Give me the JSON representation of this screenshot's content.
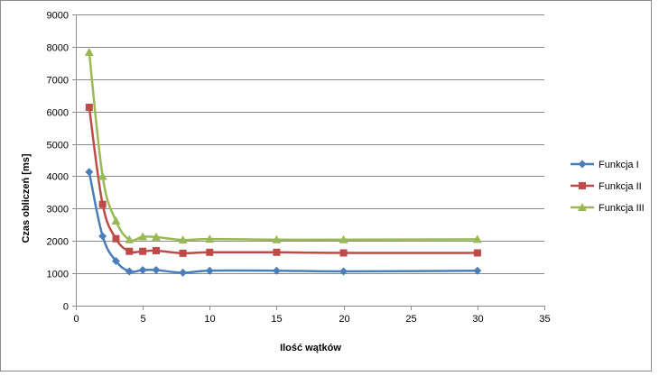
{
  "chart_data": {
    "type": "line",
    "title": "",
    "xlabel": "Ilość wątków",
    "ylabel": "Czas obliczeń  [ms]",
    "xlim": [
      0,
      35
    ],
    "ylim": [
      0,
      9000
    ],
    "x_ticks": [
      0,
      5,
      10,
      15,
      20,
      25,
      30,
      35
    ],
    "y_ticks": [
      0,
      1000,
      2000,
      3000,
      4000,
      5000,
      6000,
      7000,
      8000,
      9000
    ],
    "grid": "horizontal",
    "legend_position": "right",
    "x": [
      1,
      2,
      3,
      4,
      5,
      6,
      8,
      10,
      15,
      20,
      30
    ],
    "series": [
      {
        "name": "Funkcja I",
        "color": "#4A7EBB",
        "marker": "diamond",
        "values": [
          4130,
          2150,
          1380,
          1060,
          1100,
          1100,
          1020,
          1080,
          1080,
          1060,
          1080
        ]
      },
      {
        "name": "Funkcja II",
        "color": "#BE4B48",
        "marker": "square",
        "values": [
          6130,
          3130,
          2070,
          1680,
          1680,
          1700,
          1620,
          1650,
          1650,
          1630,
          1630
        ]
      },
      {
        "name": "Funkcja III",
        "color": "#98B954",
        "marker": "triangle",
        "values": [
          7830,
          4000,
          2620,
          2040,
          2130,
          2120,
          2030,
          2060,
          2040,
          2040,
          2050
        ]
      }
    ]
  }
}
